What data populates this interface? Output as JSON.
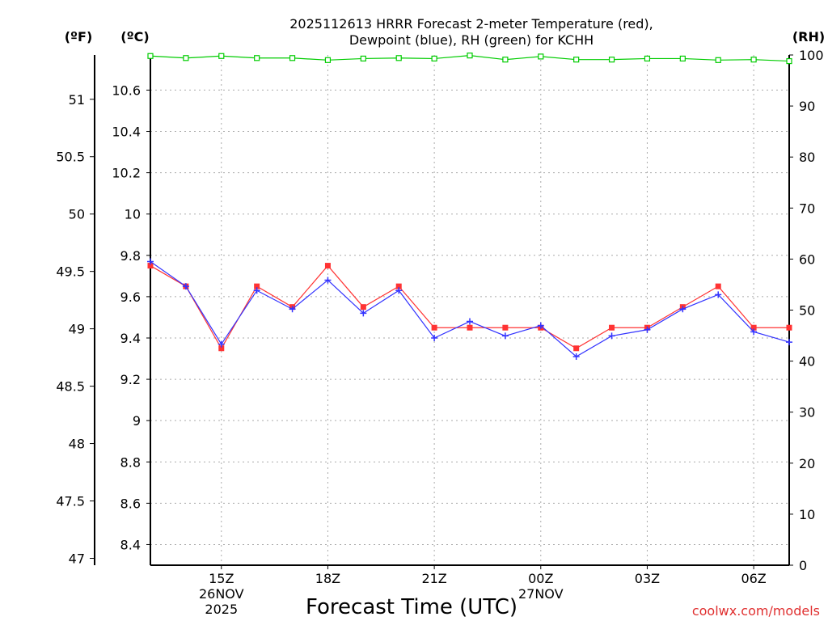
{
  "chart_data": {
    "type": "line",
    "title_line1": "2025112613 HRRR Forecast 2-meter Temperature (red),",
    "title_line2": "Dewpoint (blue), RH (green) for KCHH",
    "unit_f": "(ºF)",
    "unit_c": "(ºC)",
    "unit_rh": "(RH)",
    "xlabel": "Forecast Time (UTC)",
    "credit": "coolwx.com/models",
    "x_hours": [
      13,
      14,
      15,
      16,
      17,
      18,
      19,
      20,
      21,
      22,
      23,
      24,
      25,
      26,
      27,
      28,
      29,
      30,
      31
    ],
    "xlim": [
      13,
      31
    ],
    "ylim_c": [
      8.3,
      10.77
    ],
    "ylim_rh": [
      0,
      100
    ],
    "y_ticks_c": [
      8.4,
      8.6,
      8.8,
      9,
      9.2,
      9.4,
      9.6,
      9.8,
      10,
      10.2,
      10.4,
      10.6
    ],
    "y_ticks_f": [
      47,
      47.5,
      48,
      48.5,
      49,
      49.5,
      50,
      50.5,
      51
    ],
    "y_ticks_rh": [
      0,
      10,
      20,
      30,
      40,
      50,
      60,
      70,
      80,
      90,
      100
    ],
    "x_ticks": [
      {
        "hour": 15,
        "label": "15Z",
        "line2": "26NOV",
        "line3": "2025"
      },
      {
        "hour": 18,
        "label": "18Z",
        "line2": "",
        "line3": ""
      },
      {
        "hour": 21,
        "label": "21Z",
        "line2": "",
        "line3": ""
      },
      {
        "hour": 24,
        "label": "00Z",
        "line2": "27NOV",
        "line3": ""
      },
      {
        "hour": 27,
        "label": "03Z",
        "line2": "",
        "line3": ""
      },
      {
        "hour": 30,
        "label": "06Z",
        "line2": "",
        "line3": ""
      }
    ],
    "series": [
      {
        "name": "Temperature",
        "color": "#ff3333",
        "marker": "square",
        "values": [
          9.75,
          9.65,
          9.35,
          9.65,
          9.55,
          9.75,
          9.55,
          9.65,
          9.45,
          9.45,
          9.45,
          9.45,
          9.35,
          9.45,
          9.45,
          9.55,
          9.65,
          9.45,
          9.45
        ]
      },
      {
        "name": "Dewpoint",
        "color": "#3333ff",
        "marker": "plus",
        "values": [
          9.77,
          9.65,
          9.37,
          9.63,
          9.54,
          9.68,
          9.52,
          9.63,
          9.4,
          9.48,
          9.41,
          9.46,
          9.31,
          9.41,
          9.44,
          9.54,
          9.61,
          9.43,
          9.38
        ]
      },
      {
        "name": "RH",
        "color": "#00cc00",
        "marker": "open-square",
        "values": [
          99.8,
          99.4,
          99.8,
          99.4,
          99.4,
          99.0,
          99.3,
          99.4,
          99.3,
          99.9,
          99.1,
          99.7,
          99.1,
          99.1,
          99.3,
          99.3,
          99.0,
          99.1,
          98.8
        ]
      }
    ]
  }
}
